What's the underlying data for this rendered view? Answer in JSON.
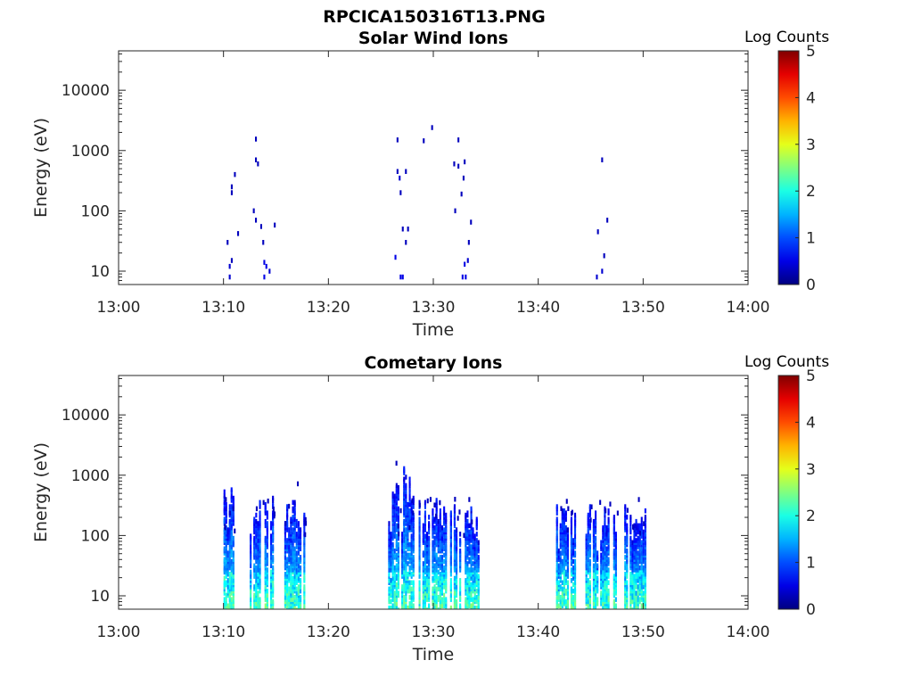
{
  "page_title": "RPCICA150316T13.PNG",
  "chart_data": [
    {
      "type": "heatmap",
      "title": "Solar Wind Ions",
      "xlabel": "Time",
      "ylabel": "Energy (eV)",
      "x_ticks": [
        "13:00",
        "13:10",
        "13:20",
        "13:30",
        "13:40",
        "13:50",
        "14:00"
      ],
      "x_range_min": [
        0,
        60
      ],
      "y_scale": "log",
      "y_ticks": [
        {
          "v": 10,
          "label": "10"
        },
        {
          "v": 100,
          "label": "100"
        },
        {
          "v": 1000,
          "label": "1000"
        },
        {
          "v": 10000,
          "label": "10000"
        }
      ],
      "y_range_eV": [
        6,
        45000
      ],
      "grid": false,
      "colorbar": {
        "label": "Log Counts",
        "range": [
          0,
          5
        ],
        "ticks": [
          "0",
          "1",
          "2",
          "3",
          "4",
          "5"
        ],
        "colormap": "jet"
      },
      "pixels": [
        {
          "t": 10.5,
          "e": 8,
          "c": 0.4
        },
        {
          "t": 10.5,
          "e": 12,
          "c": 0.4
        },
        {
          "t": 10.7,
          "e": 15,
          "c": 0.3
        },
        {
          "t": 10.3,
          "e": 30,
          "c": 0.3
        },
        {
          "t": 10.7,
          "e": 200,
          "c": 0.3
        },
        {
          "t": 10.7,
          "e": 250,
          "c": 0.3
        },
        {
          "t": 11.0,
          "e": 400,
          "c": 0.3
        },
        {
          "t": 11.3,
          "e": 42,
          "c": 0.3
        },
        {
          "t": 13.0,
          "e": 1550,
          "c": 0.3
        },
        {
          "t": 13.0,
          "e": 700,
          "c": 0.3
        },
        {
          "t": 13.2,
          "e": 600,
          "c": 0.3
        },
        {
          "t": 12.8,
          "e": 100,
          "c": 0.3
        },
        {
          "t": 13.0,
          "e": 70,
          "c": 0.3
        },
        {
          "t": 13.5,
          "e": 55,
          "c": 0.3
        },
        {
          "t": 13.7,
          "e": 30,
          "c": 0.3
        },
        {
          "t": 13.8,
          "e": 8,
          "c": 0.5
        },
        {
          "t": 14.0,
          "e": 12,
          "c": 0.5
        },
        {
          "t": 13.8,
          "e": 14,
          "c": 0.5
        },
        {
          "t": 14.3,
          "e": 10,
          "c": 0.4
        },
        {
          "t": 14.8,
          "e": 58,
          "c": 0.3
        },
        {
          "t": 26.3,
          "e": 17,
          "c": 0.5
        },
        {
          "t": 26.5,
          "e": 1500,
          "c": 0.3
        },
        {
          "t": 26.5,
          "e": 450,
          "c": 0.3
        },
        {
          "t": 26.7,
          "e": 350,
          "c": 0.4
        },
        {
          "t": 26.8,
          "e": 200,
          "c": 0.3
        },
        {
          "t": 27.3,
          "e": 450,
          "c": 0.3
        },
        {
          "t": 26.8,
          "e": 8,
          "c": 0.5
        },
        {
          "t": 27.0,
          "e": 8,
          "c": 0.5
        },
        {
          "t": 27.0,
          "e": 50,
          "c": 0.3
        },
        {
          "t": 27.5,
          "e": 50,
          "c": 0.3
        },
        {
          "t": 27.3,
          "e": 30,
          "c": 0.3
        },
        {
          "t": 29.8,
          "e": 2400,
          "c": 0.3
        },
        {
          "t": 29.0,
          "e": 1450,
          "c": 0.3
        },
        {
          "t": 32.3,
          "e": 1500,
          "c": 0.3
        },
        {
          "t": 31.9,
          "e": 600,
          "c": 0.3
        },
        {
          "t": 32.3,
          "e": 550,
          "c": 0.3
        },
        {
          "t": 32.9,
          "e": 650,
          "c": 0.3
        },
        {
          "t": 32.8,
          "e": 350,
          "c": 0.3
        },
        {
          "t": 32.6,
          "e": 190,
          "c": 0.3
        },
        {
          "t": 32.0,
          "e": 100,
          "c": 0.3
        },
        {
          "t": 33.5,
          "e": 65,
          "c": 0.3
        },
        {
          "t": 32.7,
          "e": 8,
          "c": 0.5
        },
        {
          "t": 33.0,
          "e": 8,
          "c": 0.5
        },
        {
          "t": 32.9,
          "e": 13,
          "c": 0.5
        },
        {
          "t": 33.2,
          "e": 15,
          "c": 0.4
        },
        {
          "t": 33.3,
          "e": 30,
          "c": 0.3
        },
        {
          "t": 45.5,
          "e": 8,
          "c": 0.4
        },
        {
          "t": 46.0,
          "e": 10,
          "c": 0.4
        },
        {
          "t": 46.2,
          "e": 18,
          "c": 0.3
        },
        {
          "t": 46.0,
          "e": 700,
          "c": 0.3
        },
        {
          "t": 45.6,
          "e": 45,
          "c": 0.3
        },
        {
          "t": 46.5,
          "e": 70,
          "c": 0.3
        }
      ]
    },
    {
      "type": "heatmap",
      "title": "Cometary Ions",
      "xlabel": "Time",
      "ylabel": "Energy (eV)",
      "x_ticks": [
        "13:00",
        "13:10",
        "13:20",
        "13:30",
        "13:40",
        "13:50",
        "14:00"
      ],
      "x_range_min": [
        0,
        60
      ],
      "y_scale": "log",
      "y_ticks": [
        {
          "v": 10,
          "label": "10"
        },
        {
          "v": 100,
          "label": "100"
        },
        {
          "v": 1000,
          "label": "1000"
        },
        {
          "v": 10000,
          "label": "10000"
        }
      ],
      "y_range_eV": [
        6,
        45000
      ],
      "grid": false,
      "colorbar": {
        "label": "Log Counts",
        "range": [
          0,
          5
        ],
        "ticks": [
          "0",
          "1",
          "2",
          "3",
          "4",
          "5"
        ],
        "colormap": "jet"
      },
      "bursts": [
        {
          "t0": 10.0,
          "t1": 11.2,
          "emax": 600,
          "seed": 3
        },
        {
          "t0": 12.5,
          "t1": 14.8,
          "emax": 420,
          "seed": 7
        },
        {
          "t0": 15.8,
          "t1": 17.8,
          "emax": 420,
          "seed": 11
        },
        {
          "t0": 25.7,
          "t1": 28.2,
          "emax": 1500,
          "seed": 17
        },
        {
          "t0": 28.6,
          "t1": 31.3,
          "emax": 420,
          "seed": 23
        },
        {
          "t0": 31.6,
          "t1": 34.4,
          "emax": 400,
          "seed": 29
        },
        {
          "t0": 41.7,
          "t1": 43.6,
          "emax": 320,
          "seed": 37
        },
        {
          "t0": 44.5,
          "t1": 47.5,
          "emax": 330,
          "seed": 41
        },
        {
          "t0": 48.2,
          "t1": 50.3,
          "emax": 320,
          "seed": 47
        }
      ],
      "isolated": [
        {
          "t": 17.0,
          "e": 720,
          "c": 0.3
        },
        {
          "t": 26.4,
          "e": 1580,
          "c": 0.3
        }
      ]
    }
  ]
}
